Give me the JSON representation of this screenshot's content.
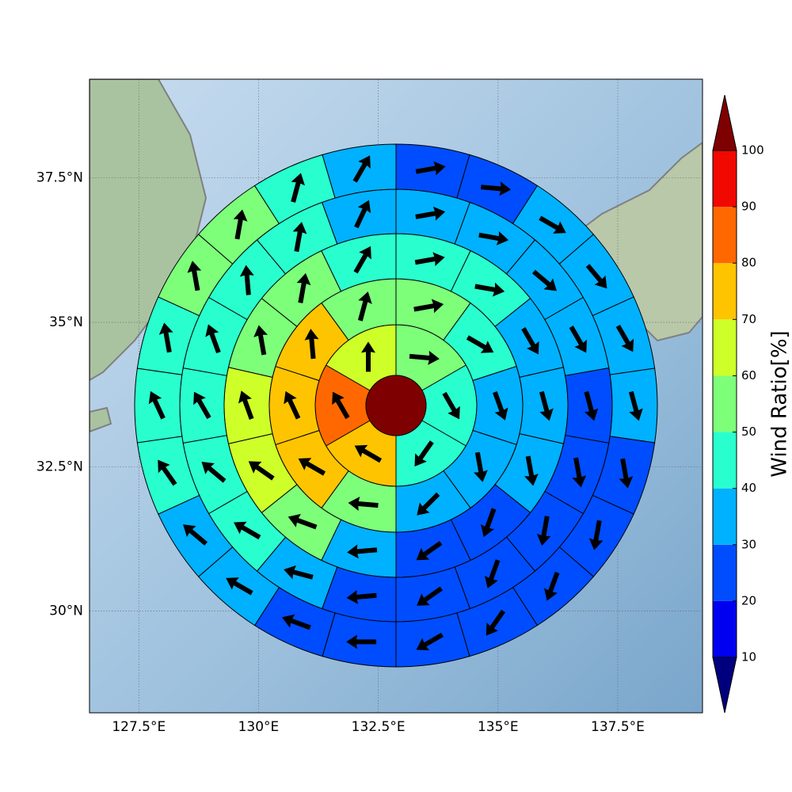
{
  "chart_data": {
    "type": "wind_sectors",
    "xlim": [
      126.47,
      139.27
    ],
    "ylim": [
      28.24,
      39.21
    ],
    "xticks": [
      {
        "value": 127.5,
        "label": "127.5°E"
      },
      {
        "value": 130,
        "label": "130°E"
      },
      {
        "value": 132.5,
        "label": "132.5°E"
      },
      {
        "value": 135,
        "label": "135°E"
      },
      {
        "value": 137.5,
        "label": "137.5°E"
      }
    ],
    "yticks": [
      {
        "value": 30,
        "label": "30°N"
      },
      {
        "value": 32.5,
        "label": "32.5°N"
      },
      {
        "value": 35,
        "label": "35°N"
      },
      {
        "value": 37.5,
        "label": "37.5°N"
      }
    ],
    "grid": true,
    "center_value": 105,
    "rings": [
      {
        "values": [
          55,
          45,
          45,
          75,
          85,
          65
        ],
        "directions": [
          95,
          150,
          215,
          300,
          330,
          0
        ]
      },
      {
        "values": [
          55,
          45,
          35,
          35,
          35,
          55,
          75,
          75,
          75,
          55
        ],
        "directions": [
          80,
          120,
          160,
          170,
          225,
          275,
          300,
          335,
          355,
          15
        ]
      },
      {
        "values": [
          45,
          45,
          35,
          35,
          35,
          25,
          25,
          35,
          55,
          65,
          65,
          55,
          55,
          45
        ],
        "directions": [
          80,
          100,
          150,
          165,
          170,
          200,
          235,
          265,
          290,
          305,
          340,
          350,
          10,
          30
        ]
      },
      {
        "values": [
          35,
          35,
          35,
          35,
          25,
          25,
          25,
          25,
          25,
          25,
          35,
          45,
          45,
          45,
          45,
          45,
          45,
          35
        ],
        "directions": [
          80,
          100,
          130,
          150,
          165,
          170,
          190,
          200,
          235,
          265,
          285,
          300,
          310,
          330,
          340,
          355,
          10,
          25
        ]
      },
      {
        "values": [
          25,
          25,
          35,
          35,
          35,
          35,
          25,
          25,
          25,
          25,
          25,
          25,
          25,
          35,
          35,
          45,
          45,
          45,
          55,
          55,
          45,
          35
        ],
        "directions": [
          80,
          95,
          120,
          140,
          150,
          165,
          170,
          190,
          200,
          215,
          240,
          270,
          290,
          300,
          310,
          325,
          335,
          350,
          350,
          10,
          15,
          30
        ]
      }
    ],
    "colorbar": {
      "label": "Wind Ratio[%]",
      "levels": [
        10,
        20,
        30,
        40,
        50,
        60,
        70,
        80,
        90,
        100
      ],
      "colors": [
        "#00007f",
        "#0000f1",
        "#004dff",
        "#00b1ff",
        "#29ffce",
        "#7dff7a",
        "#ceff29",
        "#ffc400",
        "#ff6800",
        "#f10800",
        "#7f0000"
      ]
    }
  }
}
